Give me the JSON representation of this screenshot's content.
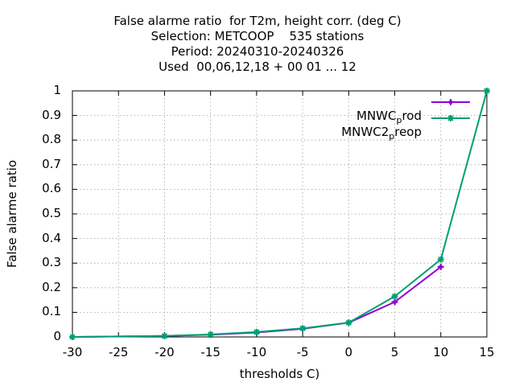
{
  "chart_data": {
    "type": "line",
    "title_lines": [
      "False alarme ratio  for T2m, height corr. (deg C)",
      "Selection: METCOOP    535 stations",
      "Period: 20240310-20240326",
      "Used  00,06,12,18 + 00 01 ... 12"
    ],
    "xlabel": "thresholds C)",
    "ylabel": "False alarme ratio",
    "xlim": [
      -30,
      15
    ],
    "ylim": [
      0,
      1
    ],
    "xticks": [
      -30,
      -25,
      -20,
      -15,
      -10,
      -5,
      0,
      5,
      10,
      15
    ],
    "yticks": [
      0,
      0.1,
      0.2,
      0.3,
      0.4,
      0.5,
      0.6,
      0.7,
      0.8,
      0.9,
      1
    ],
    "xtick_labels": [
      "-30",
      "-25",
      "-20",
      "-15",
      "-10",
      "-5",
      "0",
      "5",
      "10",
      "15"
    ],
    "ytick_labels": [
      "0",
      "0.1",
      "0.2",
      "0.3",
      "0.4",
      "0.5",
      "0.6",
      "0.7",
      "0.8",
      "0.9",
      "1"
    ],
    "grid": true,
    "legend_position": "top-right",
    "series": [
      {
        "name": "MNWC_prod",
        "legend_main": "MNWC",
        "legend_sub": "p",
        "legend_rest": "rod",
        "color": "#9400d3",
        "marker": "plus",
        "x": [
          -30,
          -20,
          -15,
          -10,
          -5,
          0,
          5,
          10
        ],
        "y": [
          0.0,
          0.004,
          0.009,
          0.018,
          0.033,
          0.058,
          0.142,
          0.285
        ]
      },
      {
        "name": "MNWC2_preop",
        "legend_main": "MNWC2",
        "legend_sub": "p",
        "legend_rest": "reop",
        "color": "#009e73",
        "marker": "star",
        "x": [
          -30,
          -20,
          -15,
          -10,
          -5,
          0,
          5,
          10,
          15
        ],
        "y": [
          0.0,
          0.004,
          0.01,
          0.02,
          0.035,
          0.058,
          0.165,
          0.315,
          1.0
        ]
      }
    ]
  }
}
